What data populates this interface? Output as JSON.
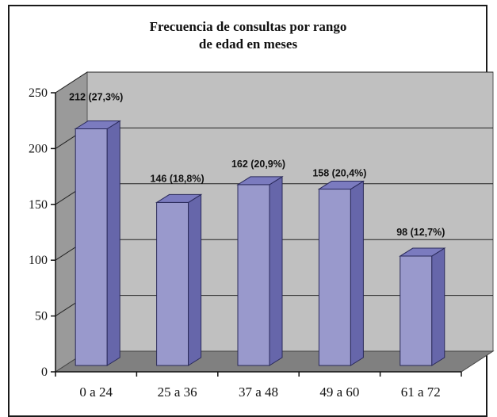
{
  "chart_data": {
    "type": "bar",
    "title_lines": [
      "Frecuencia de consultas por rango",
      "de edad en meses"
    ],
    "categories": [
      "0 a 24",
      "25 a 36",
      "37 a 48",
      "49 a 60",
      "61 a 72"
    ],
    "values": [
      212,
      146,
      162,
      158,
      98
    ],
    "data_labels": [
      "212 (27,3%)",
      "146 (18,8%)",
      "162 (20,9%)",
      "158 (20,4%)",
      "98 (12,7%)"
    ],
    "y_ticks": [
      0,
      50,
      100,
      150,
      200,
      250
    ],
    "ylim": [
      0,
      250
    ],
    "grid": true,
    "legend": "none",
    "bar_style": "3d",
    "colors": {
      "bar_front": "#9999cc",
      "bar_side": "#6666aa",
      "bar_top": "#7b7bbf",
      "bar_edge": "#2a2a5a",
      "wall": "#c0c0c0",
      "side_wall": "#9a9a9a",
      "floor": "#808080"
    }
  }
}
